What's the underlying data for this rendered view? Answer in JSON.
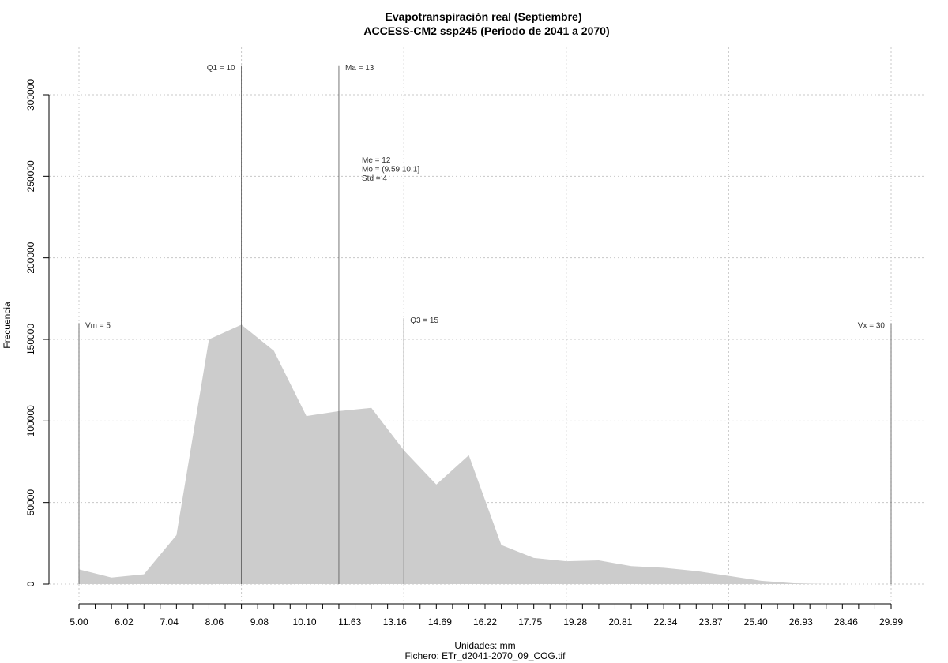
{
  "chart_data": {
    "type": "area",
    "title": "Evapotranspiración real (Septiembre)",
    "subtitle": "ACCESS-CM2 ssp245 (Periodo de 2041 a 2070)",
    "xlabel": "Unidades: mm",
    "file_label": "Fichero: ETr_d2041-2070_09_COG.tif",
    "ylabel": "Frecuencia",
    "xlim": [
      5.0,
      29.99
    ],
    "ylim": [
      0,
      300000
    ],
    "x_ticks": [
      "5.00",
      "6.02",
      "7.04",
      "8.06",
      "9.08",
      "10.10",
      "11.63",
      "13.16",
      "14.69",
      "16.22",
      "17.75",
      "19.28",
      "20.81",
      "22.34",
      "23.87",
      "25.40",
      "26.93",
      "28.46",
      "29.99"
    ],
    "y_ticks": [
      "0",
      "50000",
      "100000",
      "150000",
      "200000",
      "250000",
      "300000"
    ],
    "y_tick_values": [
      0,
      50000,
      100000,
      150000,
      200000,
      250000,
      300000
    ],
    "grid": true,
    "fill_color": "#cccccc",
    "x": [
      5.0,
      6.0,
      7.0,
      8.0,
      9.0,
      10.0,
      11.0,
      12.0,
      13.0,
      14.0,
      15.0,
      16.0,
      17.0,
      18.0,
      19.0,
      20.0,
      21.0,
      22.0,
      23.0,
      24.0,
      25.0,
      26.0,
      27.0,
      28.0,
      29.0,
      30.0
    ],
    "values": [
      9000,
      4000,
      6000,
      30000,
      150000,
      159000,
      143000,
      103000,
      106000,
      108000,
      82000,
      61000,
      79000,
      24000,
      16000,
      14000,
      14500,
      11000,
      10000,
      8000,
      5000,
      2000,
      500,
      0,
      0,
      0
    ],
    "markers": [
      {
        "label": "Vm = 5",
        "x": 5.0,
        "top": 160000
      },
      {
        "label": "Q1 = 10",
        "x": 10.0,
        "top": 318000
      },
      {
        "label": "Ma = 13",
        "x": 13.0,
        "top": 318000
      },
      {
        "label": "Q3 = 15",
        "x": 15.0,
        "top": 163000
      },
      {
        "label": "Vx = 30",
        "x": 30.0,
        "top": 160000
      }
    ],
    "stats": [
      "Me = 12",
      "Mo = (9.59,10.1]",
      "Std = 4"
    ]
  }
}
